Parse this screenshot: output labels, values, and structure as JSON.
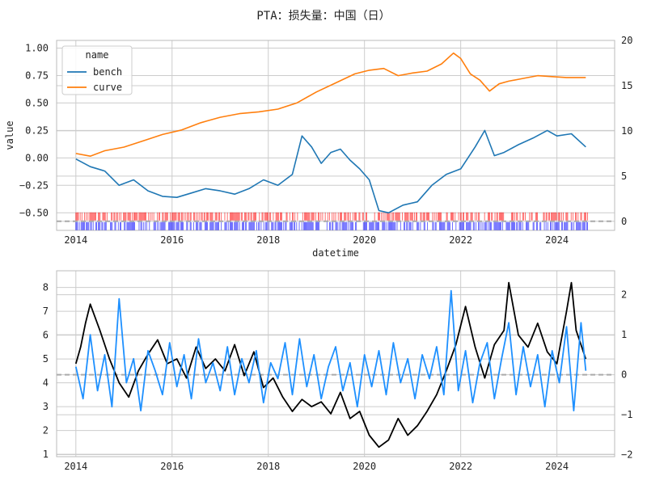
{
  "figure_title": "PTA：损失量：中国（日）",
  "colors": {
    "bench": "#1f77b4",
    "curve": "#ff7f0e",
    "signal_up": "#ff0000",
    "signal_down": "#0000ff",
    "lower_left": "#000000",
    "lower_right": "#1e90ff",
    "zero_line": "#aaaaaa",
    "grid": "#cccccc"
  },
  "chart_data": [
    {
      "type": "line",
      "xlabel": "datetime",
      "ylabel": "value",
      "x_range": [
        2013.6,
        2025.2
      ],
      "x_ticks": [
        2014,
        2016,
        2018,
        2020,
        2022,
        2024
      ],
      "x_tick_labels": [
        "2014",
        "2016",
        "2018",
        "2020",
        "2022",
        "2024"
      ],
      "ylim_left": [
        -0.66,
        1.07
      ],
      "y_ticks_left": [
        -0.5,
        -0.25,
        0.0,
        0.25,
        0.5,
        0.75,
        1.0
      ],
      "y_tick_labels_left": [
        "−0.50",
        "−0.25",
        "0.00",
        "0.25",
        "0.50",
        "0.75",
        "1.00"
      ],
      "ylim_right": [
        -1,
        20
      ],
      "y_ticks_right": [
        0,
        5,
        10,
        15,
        20
      ],
      "y_tick_labels_right": [
        "0",
        "5",
        "10",
        "15",
        "20"
      ],
      "grid": true,
      "legend": {
        "title": "name",
        "position": "top-left",
        "entries": [
          "bench",
          "curve"
        ]
      },
      "series": [
        {
          "name": "bench",
          "axis": "left",
          "x": [
            2014.0,
            2014.3,
            2014.6,
            2014.9,
            2015.2,
            2015.5,
            2015.8,
            2016.1,
            2016.4,
            2016.7,
            2017.0,
            2017.3,
            2017.6,
            2017.9,
            2018.2,
            2018.5,
            2018.7,
            2018.9,
            2019.1,
            2019.3,
            2019.5,
            2019.7,
            2019.9,
            2020.1,
            2020.3,
            2020.5,
            2020.8,
            2021.1,
            2021.4,
            2021.7,
            2022.0,
            2022.3,
            2022.5,
            2022.7,
            2022.9,
            2023.2,
            2023.5,
            2023.8,
            2024.0,
            2024.3,
            2024.6
          ],
          "values": [
            -0.01,
            -0.08,
            -0.12,
            -0.25,
            -0.2,
            -0.3,
            -0.35,
            -0.36,
            -0.32,
            -0.28,
            -0.3,
            -0.33,
            -0.28,
            -0.2,
            -0.25,
            -0.15,
            0.2,
            0.1,
            -0.05,
            0.05,
            0.08,
            -0.02,
            -0.1,
            -0.2,
            -0.48,
            -0.5,
            -0.43,
            -0.4,
            -0.25,
            -0.15,
            -0.1,
            0.1,
            0.25,
            0.02,
            0.05,
            0.12,
            0.18,
            0.25,
            0.2,
            0.22,
            0.1
          ]
        },
        {
          "name": "curve",
          "axis": "right",
          "x": [
            2014.0,
            2014.3,
            2014.6,
            2015.0,
            2015.4,
            2015.8,
            2016.2,
            2016.6,
            2017.0,
            2017.4,
            2017.8,
            2018.2,
            2018.6,
            2019.0,
            2019.4,
            2019.8,
            2020.1,
            2020.4,
            2020.7,
            2021.0,
            2021.3,
            2021.6,
            2021.85,
            2022.0,
            2022.2,
            2022.4,
            2022.6,
            2022.8,
            2023.0,
            2023.3,
            2023.6,
            2023.9,
            2024.2,
            2024.6
          ],
          "values": [
            7.5,
            7.2,
            7.8,
            8.2,
            8.9,
            9.6,
            10.1,
            10.9,
            11.5,
            11.9,
            12.1,
            12.4,
            13.1,
            14.3,
            15.3,
            16.3,
            16.7,
            16.9,
            16.1,
            16.4,
            16.6,
            17.4,
            18.6,
            18.0,
            16.3,
            15.6,
            14.4,
            15.2,
            15.5,
            15.8,
            16.1,
            16.0,
            15.9,
            15.9
          ]
        }
      ],
      "zero_line_right": 0
    },
    {
      "type": "line",
      "xlabel": "",
      "ylabel": "",
      "x_range": [
        2013.6,
        2025.2
      ],
      "x_ticks": [
        2014,
        2016,
        2018,
        2020,
        2022,
        2024
      ],
      "x_tick_labels": [
        "2014",
        "2016",
        "2018",
        "2020",
        "2022",
        "2024"
      ],
      "ylim_left": [
        0.9,
        8.7
      ],
      "y_ticks_left": [
        1,
        2,
        3,
        4,
        5,
        6,
        7,
        8
      ],
      "y_tick_labels_left": [
        "1",
        "2",
        "3",
        "4",
        "5",
        "6",
        "7",
        "8"
      ],
      "ylim_right": [
        -2.05,
        2.6
      ],
      "y_ticks_right": [
        -2,
        -1,
        0,
        1,
        2
      ],
      "y_tick_labels_right": [
        "−2",
        "−1",
        "0",
        "1",
        "2"
      ],
      "grid": true,
      "series": [
        {
          "axis": "left",
          "x": [
            2014.0,
            2014.1,
            2014.2,
            2014.3,
            2014.5,
            2014.7,
            2014.9,
            2015.1,
            2015.3,
            2015.5,
            2015.7,
            2015.9,
            2016.1,
            2016.3,
            2016.5,
            2016.7,
            2016.9,
            2017.1,
            2017.3,
            2017.5,
            2017.7,
            2017.9,
            2018.1,
            2018.3,
            2018.5,
            2018.7,
            2018.9,
            2019.1,
            2019.3,
            2019.5,
            2019.7,
            2019.9,
            2020.1,
            2020.3,
            2020.5,
            2020.7,
            2020.9,
            2021.1,
            2021.3,
            2021.5,
            2021.7,
            2021.9,
            2022.1,
            2022.3,
            2022.5,
            2022.7,
            2022.9,
            2023.0,
            2023.2,
            2023.4,
            2023.6,
            2023.8,
            2024.0,
            2024.2,
            2024.3,
            2024.4,
            2024.6
          ],
          "values": [
            4.8,
            5.5,
            6.5,
            7.3,
            6.2,
            5.0,
            4.0,
            3.4,
            4.5,
            5.2,
            5.8,
            4.8,
            5.0,
            4.2,
            5.5,
            4.6,
            5.0,
            4.5,
            5.6,
            4.3,
            5.3,
            3.8,
            4.2,
            3.4,
            2.8,
            3.3,
            3.0,
            3.2,
            2.7,
            3.6,
            2.5,
            2.8,
            1.8,
            1.3,
            1.6,
            2.5,
            1.8,
            2.2,
            2.8,
            3.5,
            4.5,
            5.6,
            7.2,
            5.5,
            4.2,
            5.6,
            6.2,
            8.2,
            6.0,
            5.5,
            6.5,
            5.3,
            4.8,
            7.0,
            8.2,
            6.2,
            5.0
          ]
        },
        {
          "axis": "right",
          "x": [
            2014.0,
            2014.15,
            2014.3,
            2014.45,
            2014.6,
            2014.75,
            2014.9,
            2015.05,
            2015.2,
            2015.35,
            2015.5,
            2015.65,
            2015.8,
            2015.95,
            2016.1,
            2016.25,
            2016.4,
            2016.55,
            2016.7,
            2016.85,
            2017.0,
            2017.15,
            2017.3,
            2017.45,
            2017.6,
            2017.75,
            2017.9,
            2018.05,
            2018.2,
            2018.35,
            2018.5,
            2018.65,
            2018.8,
            2018.95,
            2019.1,
            2019.25,
            2019.4,
            2019.55,
            2019.7,
            2019.85,
            2020.0,
            2020.15,
            2020.3,
            2020.45,
            2020.6,
            2020.75,
            2020.9,
            2021.05,
            2021.2,
            2021.35,
            2021.5,
            2021.65,
            2021.8,
            2021.95,
            2022.1,
            2022.25,
            2022.4,
            2022.55,
            2022.7,
            2022.85,
            2023.0,
            2023.15,
            2023.3,
            2023.45,
            2023.6,
            2023.75,
            2023.9,
            2024.05,
            2024.2,
            2024.35,
            2024.5,
            2024.6
          ],
          "values": [
            0.2,
            -0.6,
            1.0,
            -0.4,
            0.5,
            -0.8,
            1.9,
            -0.2,
            0.4,
            -0.9,
            0.6,
            0.1,
            -0.5,
            0.8,
            -0.3,
            0.5,
            -0.6,
            0.9,
            -0.2,
            0.3,
            -0.4,
            0.7,
            -0.5,
            0.4,
            -0.2,
            0.6,
            -0.7,
            0.3,
            -0.1,
            0.8,
            -0.5,
            0.9,
            -0.3,
            0.5,
            -0.6,
            0.2,
            0.7,
            -0.4,
            0.3,
            -0.8,
            0.5,
            -0.3,
            0.6,
            -0.5,
            0.8,
            -0.2,
            0.4,
            -0.6,
            0.5,
            -0.1,
            0.7,
            -0.5,
            2.1,
            -0.4,
            0.6,
            -0.7,
            0.3,
            0.8,
            -0.6,
            0.4,
            1.3,
            -0.5,
            0.7,
            -0.3,
            0.5,
            -0.8,
            0.6,
            -0.2,
            1.2,
            -0.9,
            1.3,
            0.1
          ]
        }
      ],
      "zero_line_right": 0
    }
  ]
}
